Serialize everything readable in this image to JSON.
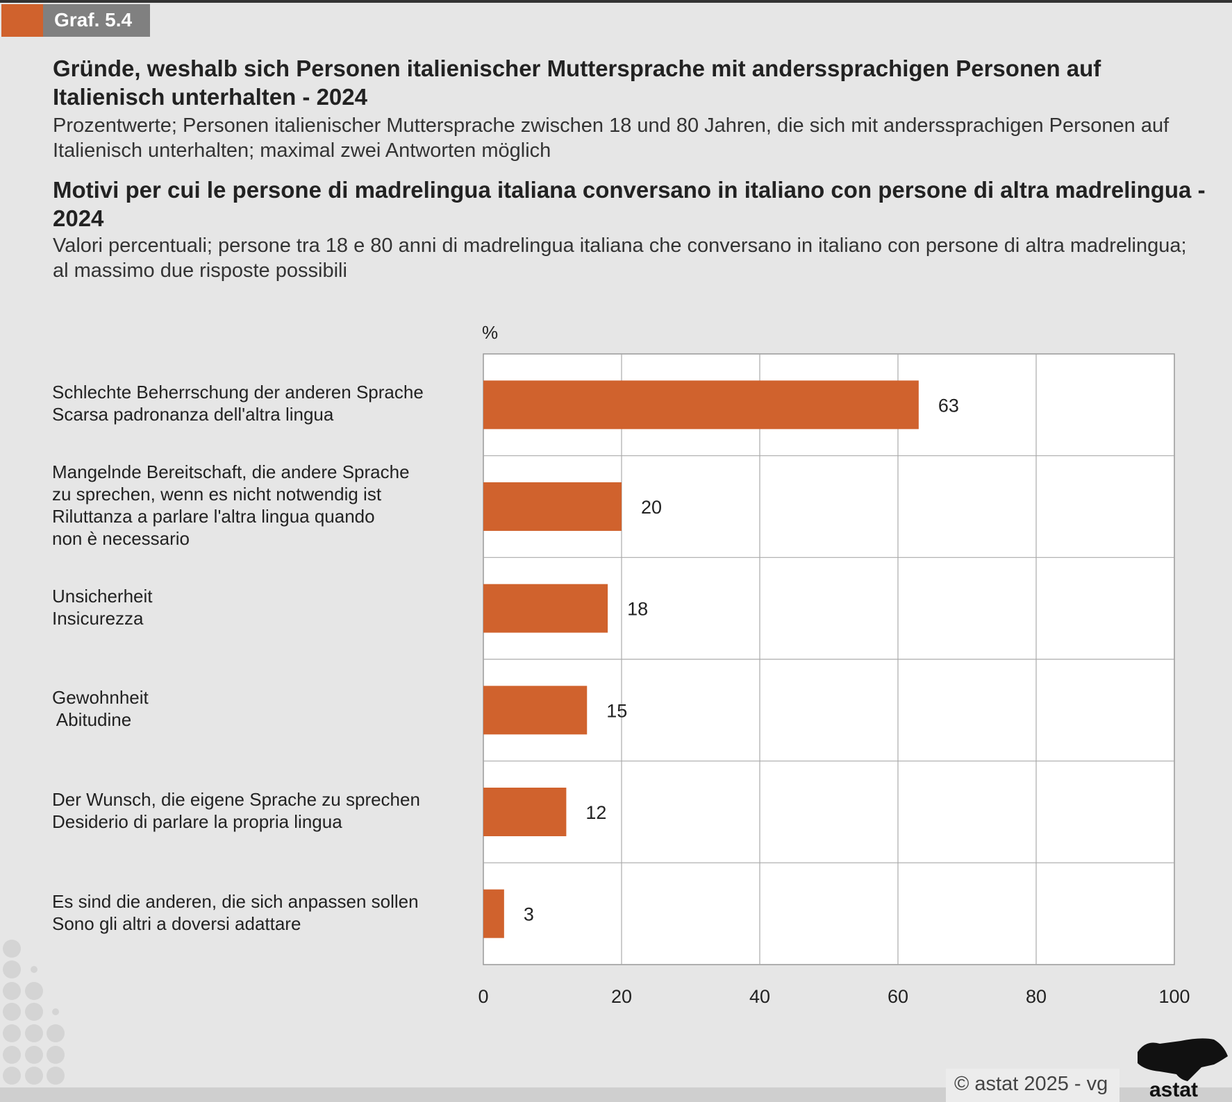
{
  "header": {
    "tag": "Graf. 5.4"
  },
  "title_de": "Gründe, weshalb sich Personen italienischer Muttersprache mit anderssprachigen Personen auf Italienisch unterhalten - 2024",
  "subtitle_de": "Prozentwerte; Personen italienischer Muttersprache zwischen 18 und 80 Jahren, die sich mit anderssprachigen Personen auf Italienisch unterhalten; maximal zwei Antworten möglich",
  "title_it": "Motivi per cui le persone di madrelingua italiana conversano in italiano con persone di altra madrelingua - 2024",
  "subtitle_it": "Valori percentuali; persone tra 18 e 80 anni di madrelingua italiana che conversano in italiano con persone di altra madrelingua; al massimo due risposte possibili",
  "footer": {
    "copyright": "© astat 2025 - vg",
    "logo": "astat"
  },
  "colors": {
    "bar": "#d0622d",
    "accent": "#d0622d",
    "tag_bg": "#808080"
  },
  "chart_data": {
    "type": "bar",
    "orientation": "horizontal",
    "unit_label": "%",
    "categories": [
      "Schlechte Beherrschung der anderen Sprache\nScarsa padronanza dell'altra lingua",
      "Mangelnde Bereitschaft, die andere Sprache\nzu sprechen, wenn es nicht notwendig ist\nRiluttanza a parlare l'altra lingua quando\nnon è necessario",
      "Unsicherheit\nInsicurezza",
      "Gewohnheit\n Abitudine",
      "Der Wunsch, die eigene Sprache zu sprechen\nDesiderio di parlare la propria lingua",
      "Es sind die anderen, die sich anpassen sollen\nSono gli altri a doversi adattare"
    ],
    "values": [
      63,
      20,
      18,
      15,
      12,
      3
    ],
    "xlim": [
      0,
      100
    ],
    "xticks": [
      "0",
      "20",
      "40",
      "60",
      "80",
      "100"
    ],
    "grid": true
  }
}
